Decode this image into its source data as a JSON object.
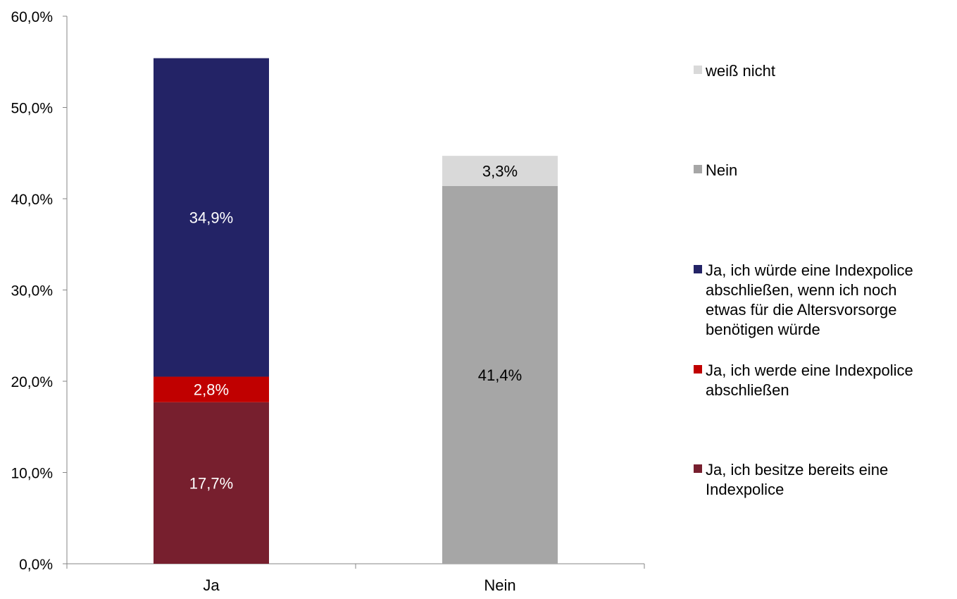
{
  "chart_data": {
    "type": "bar",
    "stacked": true,
    "categories": [
      "Ja",
      "Nein"
    ],
    "ylim": [
      0,
      60
    ],
    "yticks": [
      0,
      10,
      20,
      30,
      40,
      50,
      60
    ],
    "ytick_labels": [
      "0,0%",
      "10,0%",
      "20,0%",
      "30,0%",
      "40,0%",
      "50,0%",
      "60,0%"
    ],
    "grid": false,
    "legend_position": "right",
    "series": [
      {
        "name": "Ja, ich besitze bereits eine Indexpolice",
        "legend_lines": [
          "Ja, ich besitze bereits eine",
          "Indexpolice"
        ],
        "color": "#771f2e",
        "label_color": "#ffffff",
        "values": [
          17.7,
          0
        ],
        "labels": [
          "17,7%",
          ""
        ]
      },
      {
        "name": "Ja, ich werde eine Indexpolice abschließen",
        "legend_lines": [
          "Ja, ich werde eine Indexpolice",
          "abschließen"
        ],
        "color": "#c00000",
        "label_color": "#ffffff",
        "values": [
          2.8,
          0
        ],
        "labels": [
          "2,8%",
          ""
        ]
      },
      {
        "name": "Ja, ich würde eine Indexpolice abschließen, wenn ich noch etwas für die Altersvorsorge benötigen würde",
        "legend_lines": [
          "Ja, ich würde eine Indexpolice",
          "abschließen, wenn ich noch",
          "etwas für die Altersvorsorge",
          "benötigen würde"
        ],
        "color": "#232366",
        "label_color": "#ffffff",
        "values": [
          34.9,
          0
        ],
        "labels": [
          "34,9%",
          ""
        ]
      },
      {
        "name": "Nein",
        "legend_lines": [
          "Nein"
        ],
        "color": "#a6a6a6",
        "label_color": "#000000",
        "values": [
          0,
          41.4
        ],
        "labels": [
          "",
          "41,4%"
        ]
      },
      {
        "name": "weiß nicht",
        "legend_lines": [
          "weiß nicht"
        ],
        "color": "#d9d9d9",
        "label_color": "#000000",
        "values": [
          0,
          3.3
        ],
        "labels": [
          "",
          "3,3%"
        ]
      }
    ]
  }
}
